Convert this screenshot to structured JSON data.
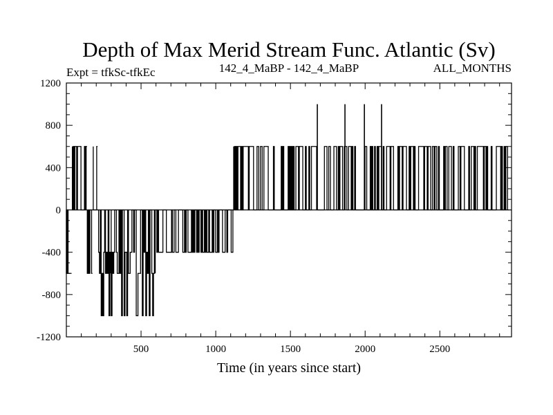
{
  "chart_data": {
    "type": "line",
    "title": "Depth of Max Merid Stream Func. Atlantic (Sv)",
    "subtitle_left": "Expt = tfkSc-tfkEc",
    "subtitle_center": "142_4_MaBP - 142_4_MaBP",
    "subtitle_right": "ALL_MONTHS",
    "xlabel": "Time (in years since start)",
    "ylabel": "",
    "xlim": [
      0,
      2980
    ],
    "ylim": [
      -1200,
      1200
    ],
    "x_ticks": [
      500,
      1000,
      1500,
      2000,
      2500
    ],
    "y_ticks": [
      -1200,
      -800,
      -400,
      0,
      400,
      800,
      1200
    ],
    "series": [
      {
        "name": "Depth of Max Merid Stream Func.",
        "color": "#000000",
        "segments": [
          {
            "x_start": 0,
            "x_end": 40,
            "high": 0,
            "low": -600
          },
          {
            "x_start": 40,
            "x_end": 140,
            "high": 600,
            "low": 0
          },
          {
            "x_start": 140,
            "x_end": 180,
            "high": 0,
            "low": -600
          },
          {
            "x_start": 180,
            "x_end": 210,
            "high": 600,
            "low": 0
          },
          {
            "x_start": 210,
            "x_end": 300,
            "high": 0,
            "low": -1000
          },
          {
            "x_start": 300,
            "x_end": 600,
            "high": 0,
            "low": -1000
          },
          {
            "x_start": 600,
            "x_end": 1120,
            "high": 0,
            "low": -400
          },
          {
            "x_start": 1120,
            "x_end": 2960,
            "high": 600,
            "low": 0
          }
        ],
        "spikes": [
          {
            "x": 1680,
            "y": 1000
          },
          {
            "x": 1865,
            "y": 1000
          },
          {
            "x": 1995,
            "y": 1000
          },
          {
            "x": 2110,
            "y": 1000
          }
        ]
      }
    ]
  }
}
